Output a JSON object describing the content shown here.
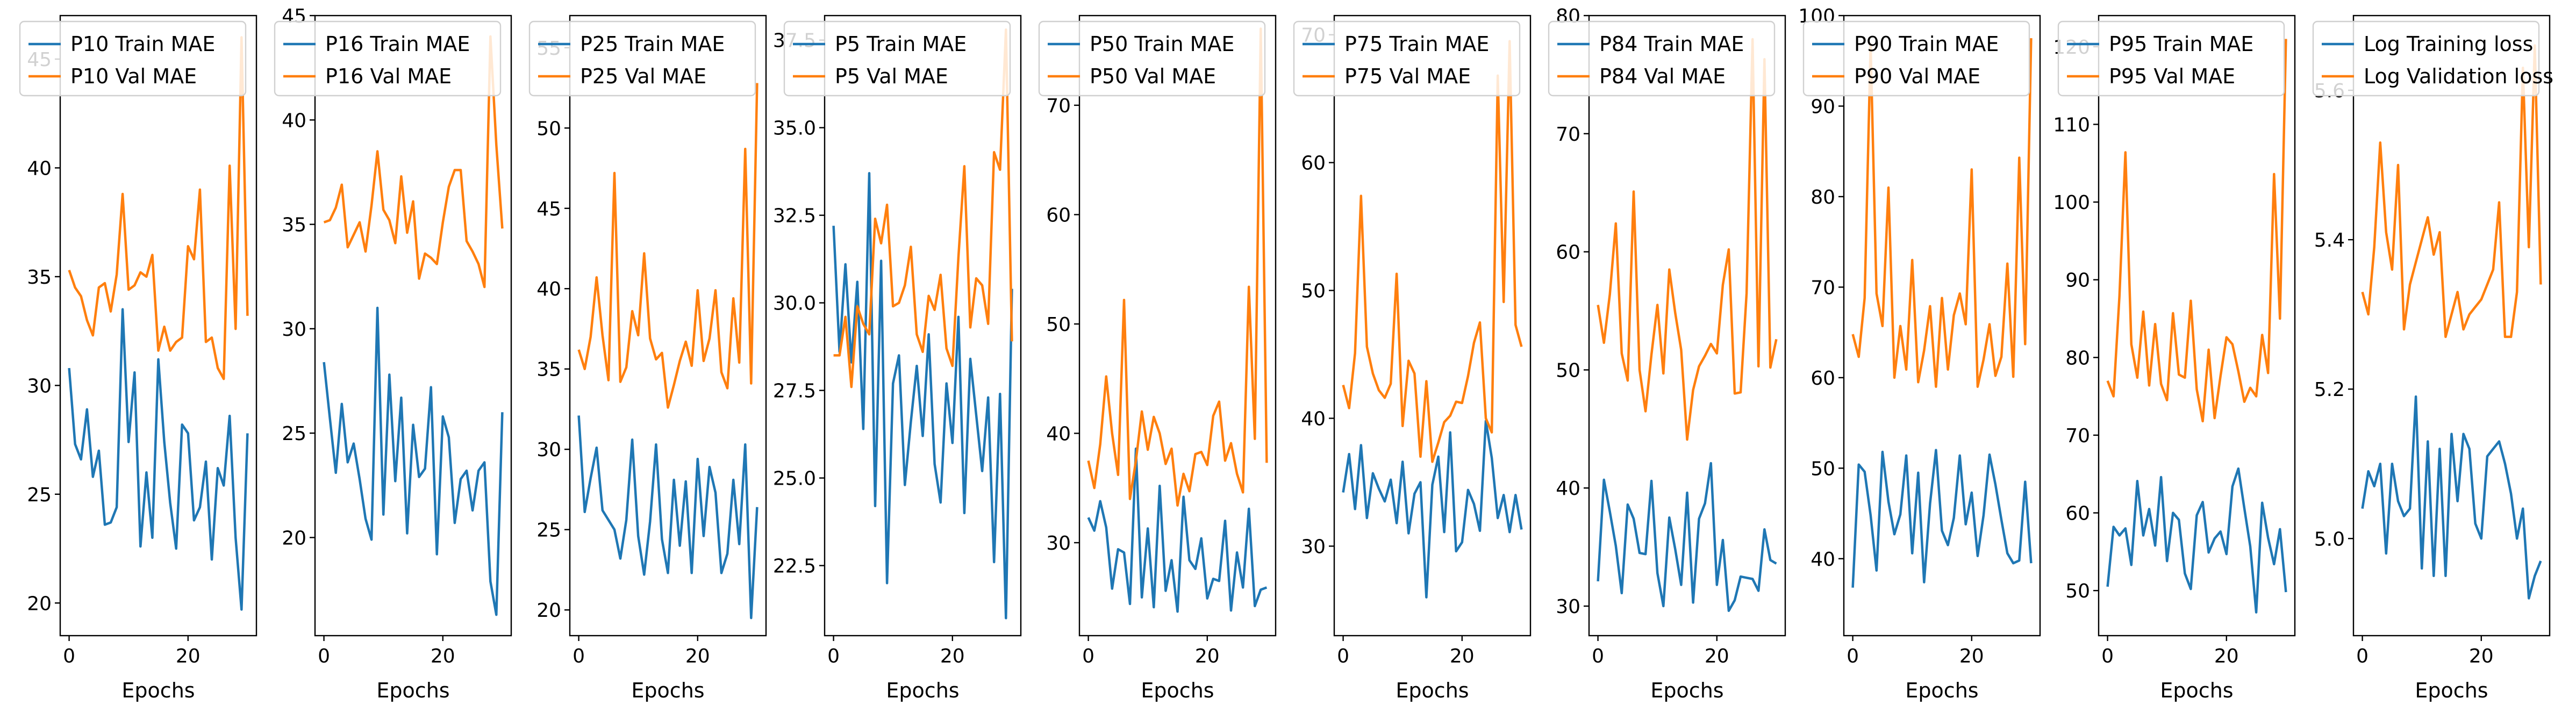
{
  "chart_data": [
    {
      "type": "line",
      "xlabel": "Epochs",
      "xlim": [
        -1.5,
        31.5
      ],
      "ylim": [
        18.5,
        47
      ],
      "yticks": [
        20,
        25,
        30,
        35,
        40,
        45
      ],
      "xticks": [
        0,
        20
      ],
      "legend_position": "top-left",
      "series": [
        {
          "name": "P10 Train MAE",
          "color": "#1f77b4",
          "y": [
            30.8,
            27.3,
            26.6,
            28.9,
            25.8,
            27.0,
            23.6,
            23.7,
            24.4,
            33.5,
            27.4,
            30.6,
            22.6,
            26.0,
            23.0,
            31.2,
            27.4,
            24.6,
            22.5,
            28.2,
            27.8,
            23.8,
            24.4,
            26.5,
            22.0,
            26.2,
            25.4,
            28.6,
            23.0,
            19.7,
            27.8
          ]
        },
        {
          "name": "P10 Val MAE",
          "color": "#ff7f0e",
          "y": [
            35.3,
            34.5,
            34.1,
            33.0,
            32.3,
            34.5,
            34.7,
            33.4,
            35.1,
            38.8,
            34.4,
            34.6,
            35.2,
            35.0,
            36.0,
            31.6,
            32.7,
            31.6,
            32.0,
            32.2,
            36.4,
            35.8,
            39.0,
            32.0,
            32.2,
            30.8,
            30.3,
            40.1,
            32.6,
            46.0,
            33.2
          ]
        }
      ]
    },
    {
      "type": "line",
      "xlabel": "Epochs",
      "xlim": [
        -1.5,
        31.5
      ],
      "ylim": [
        15.3,
        45
      ],
      "yticks": [
        20,
        25,
        30,
        35,
        40,
        45
      ],
      "xticks": [
        0,
        20
      ],
      "legend_position": "top-left",
      "series": [
        {
          "name": "P16 Train MAE",
          "color": "#1f77b4",
          "y": [
            28.4,
            25.7,
            23.1,
            26.4,
            23.6,
            24.5,
            22.8,
            20.9,
            19.9,
            31.0,
            21.1,
            27.8,
            22.7,
            26.7,
            20.2,
            25.4,
            22.9,
            23.3,
            27.2,
            19.2,
            25.8,
            24.8,
            20.7,
            22.8,
            23.2,
            21.3,
            23.2,
            23.6,
            17.9,
            16.3,
            26.0
          ]
        },
        {
          "name": "P16 Val MAE",
          "color": "#ff7f0e",
          "y": [
            35.1,
            35.2,
            35.8,
            36.9,
            33.9,
            34.5,
            35.1,
            33.7,
            35.9,
            38.5,
            35.7,
            35.2,
            34.1,
            37.3,
            34.6,
            36.1,
            32.4,
            33.6,
            33.4,
            33.1,
            35.1,
            36.8,
            37.6,
            37.6,
            34.2,
            33.7,
            33.1,
            32.0,
            44.0,
            38.8,
            34.8
          ]
        }
      ]
    },
    {
      "type": "line",
      "xlabel": "Epochs",
      "xlim": [
        -1.5,
        31.5
      ],
      "ylim": [
        18.4,
        57
      ],
      "yticks": [
        20,
        25,
        30,
        35,
        40,
        45,
        50,
        55
      ],
      "xticks": [
        0,
        20
      ],
      "legend_position": "top-left",
      "series": [
        {
          "name": "P25 Train MAE",
          "color": "#1f77b4",
          "y": [
            32.1,
            26.1,
            28.2,
            30.1,
            26.2,
            25.6,
            25.0,
            23.2,
            25.6,
            30.6,
            24.6,
            22.2,
            25.5,
            30.3,
            24.4,
            22.3,
            28.1,
            24.0,
            28.0,
            22.3,
            29.4,
            24.6,
            28.9,
            27.3,
            22.3,
            23.5,
            28.1,
            24.1,
            30.3,
            19.5,
            26.4
          ]
        },
        {
          "name": "P25 Val MAE",
          "color": "#ff7f0e",
          "y": [
            36.2,
            35.0,
            37.0,
            40.7,
            37.1,
            34.3,
            47.2,
            34.2,
            35.1,
            38.6,
            37.1,
            42.2,
            36.9,
            35.6,
            36.0,
            32.6,
            34.0,
            35.5,
            36.7,
            35.2,
            39.9,
            35.5,
            36.9,
            39.9,
            34.8,
            33.8,
            39.4,
            35.4,
            48.7,
            34.1,
            52.8
          ]
        }
      ]
    },
    {
      "type": "line",
      "xlabel": "Epochs",
      "xlim": [
        -1.5,
        31.5
      ],
      "ylim": [
        20.5,
        38.2
      ],
      "yticks": [
        22.5,
        25.0,
        27.5,
        30.0,
        32.5,
        35.0,
        37.5
      ],
      "xticks": [
        0,
        20
      ],
      "legend_position": "top-left",
      "series": [
        {
          "name": "P5 Train MAE",
          "color": "#1f77b4",
          "y": [
            32.2,
            28.6,
            31.1,
            28.3,
            30.6,
            26.4,
            33.7,
            24.2,
            31.2,
            22.0,
            27.7,
            28.5,
            24.8,
            26.6,
            28.2,
            26.2,
            29.1,
            25.4,
            24.3,
            27.7,
            26.0,
            29.6,
            24.0,
            28.4,
            26.8,
            25.2,
            27.3,
            22.6,
            27.4,
            21.0,
            30.4
          ]
        },
        {
          "name": "P5 Val MAE",
          "color": "#ff7f0e",
          "y": [
            28.5,
            28.5,
            29.6,
            27.6,
            29.9,
            29.4,
            29.1,
            32.4,
            31.7,
            32.8,
            29.9,
            30.0,
            30.5,
            31.6,
            29.1,
            28.6,
            30.2,
            29.8,
            30.8,
            28.7,
            28.2,
            31.3,
            33.9,
            29.3,
            30.7,
            30.5,
            29.4,
            34.3,
            33.8,
            37.8,
            28.9
          ]
        }
      ]
    },
    {
      "type": "line",
      "xlabel": "Epochs",
      "xlim": [
        -1.5,
        31.5
      ],
      "ylim": [
        21.5,
        78.2
      ],
      "yticks": [
        30,
        40,
        50,
        60,
        70
      ],
      "xticks": [
        0,
        20
      ],
      "legend_position": "top-left",
      "series": [
        {
          "name": "P50 Train MAE",
          "color": "#1f77b4",
          "y": [
            32.3,
            31.1,
            33.8,
            31.4,
            25.8,
            29.4,
            29.1,
            24.4,
            38.6,
            25.0,
            31.3,
            24.1,
            35.2,
            25.6,
            28.4,
            23.7,
            34.2,
            28.4,
            27.6,
            30.4,
            24.9,
            26.7,
            26.5,
            32.0,
            23.8,
            29.1,
            25.9,
            33.1,
            24.2,
            25.7,
            25.9
          ]
        },
        {
          "name": "P50 Val MAE",
          "color": "#ff7f0e",
          "y": [
            37.5,
            35.0,
            39.0,
            45.2,
            40.0,
            36.2,
            52.2,
            34.0,
            37.5,
            42.0,
            38.5,
            41.5,
            40.0,
            37.2,
            38.6,
            33.4,
            36.3,
            34.7,
            38.1,
            38.3,
            37.1,
            41.6,
            42.9,
            37.5,
            39.1,
            36.3,
            34.6,
            53.4,
            39.5,
            77.0,
            37.3
          ]
        }
      ]
    },
    {
      "type": "line",
      "xlabel": "Epochs",
      "xlim": [
        -1.5,
        31.5
      ],
      "ylim": [
        23.0,
        71.5
      ],
      "yticks": [
        30,
        40,
        50,
        60,
        70
      ],
      "xticks": [
        0,
        20
      ],
      "legend_position": "top-left",
      "series": [
        {
          "name": "P75 Train MAE",
          "color": "#1f77b4",
          "y": [
            34.2,
            37.2,
            32.9,
            37.9,
            32.2,
            35.7,
            34.5,
            33.5,
            35.2,
            31.8,
            36.6,
            31.0,
            34.1,
            35.0,
            26.0,
            34.8,
            37.0,
            31.1,
            38.9,
            29.6,
            30.3,
            34.4,
            33.3,
            31.2,
            39.8,
            36.9,
            32.2,
            34.0,
            31.1,
            34.0,
            31.3
          ]
        },
        {
          "name": "P75 Val MAE",
          "color": "#ff7f0e",
          "y": [
            42.6,
            40.8,
            45.1,
            57.4,
            45.6,
            43.5,
            42.2,
            41.6,
            42.7,
            51.3,
            39.4,
            44.5,
            43.5,
            37.0,
            42.9,
            36.6,
            38.1,
            39.7,
            40.2,
            41.3,
            41.2,
            43.3,
            45.9,
            47.5,
            40.0,
            38.9,
            66.8,
            49.1,
            69.5,
            47.3,
            45.6
          ]
        }
      ]
    },
    {
      "type": "line",
      "xlabel": "Epochs",
      "xlim": [
        -1.5,
        31.5
      ],
      "ylim": [
        27.5,
        80
      ],
      "yticks": [
        30,
        40,
        50,
        60,
        70,
        80
      ],
      "xticks": [
        0,
        20
      ],
      "legend_position": "top-left",
      "series": [
        {
          "name": "P84 Train MAE",
          "color": "#1f77b4",
          "y": [
            32.1,
            40.7,
            38.0,
            35.1,
            31.1,
            38.6,
            37.4,
            34.5,
            34.4,
            40.6,
            32.8,
            30.0,
            37.5,
            34.8,
            31.8,
            39.6,
            30.3,
            37.4,
            38.7,
            42.1,
            31.8,
            35.6,
            29.6,
            30.5,
            32.5,
            32.4,
            32.3,
            31.3,
            36.5,
            33.9,
            33.6
          ]
        },
        {
          "name": "P84 Val MAE",
          "color": "#ff7f0e",
          "y": [
            55.5,
            52.3,
            56.4,
            62.4,
            51.4,
            49.1,
            65.1,
            50.0,
            46.5,
            51.3,
            55.5,
            49.7,
            58.5,
            54.8,
            51.7,
            44.1,
            48.3,
            50.3,
            51.2,
            52.2,
            51.4,
            57.2,
            60.2,
            48.0,
            48.1,
            56.5,
            78.0,
            50.3,
            76.3,
            50.2,
            52.6
          ]
        }
      ]
    },
    {
      "type": "line",
      "xlabel": "Epochs",
      "xlim": [
        -1.5,
        31.5
      ],
      "ylim": [
        31.5,
        100
      ],
      "yticks": [
        40,
        50,
        60,
        70,
        80,
        90,
        100
      ],
      "xticks": [
        0,
        20
      ],
      "legend_position": "top-left",
      "series": [
        {
          "name": "P90 Train MAE",
          "color": "#1f77b4",
          "y": [
            36.8,
            50.4,
            49.6,
            44.8,
            38.7,
            51.8,
            46.3,
            42.7,
            44.9,
            51.4,
            40.6,
            49.5,
            37.4,
            46.1,
            52.0,
            43.1,
            41.5,
            44.5,
            51.4,
            43.8,
            47.3,
            40.3,
            44.8,
            51.5,
            48.2,
            44.3,
            40.6,
            39.5,
            39.8,
            48.5,
            39.5
          ]
        },
        {
          "name": "P90 Val MAE",
          "color": "#ff7f0e",
          "y": [
            64.8,
            62.3,
            68.8,
            96.8,
            69.3,
            65.7,
            81.0,
            60.0,
            65.7,
            60.9,
            73.0,
            59.5,
            63.0,
            67.9,
            59.0,
            68.8,
            60.9,
            66.9,
            69.3,
            65.9,
            83.0,
            59.0,
            62.0,
            65.9,
            60.2,
            62.3,
            72.6,
            60.1,
            84.3,
            63.7,
            97.5
          ]
        }
      ]
    },
    {
      "type": "line",
      "xlabel": "Epochs",
      "xlim": [
        -1.5,
        31.5
      ],
      "ylim": [
        44.2,
        124
      ],
      "yticks": [
        50,
        60,
        70,
        80,
        90,
        100,
        110,
        120
      ],
      "xticks": [
        0,
        20
      ],
      "legend_position": "top-left",
      "series": [
        {
          "name": "P95 Train MAE",
          "color": "#1f77b4",
          "y": [
            50.5,
            58.2,
            57.1,
            58.0,
            53.3,
            64.1,
            57.1,
            60.5,
            55.8,
            64.6,
            53.8,
            60.0,
            59.1,
            52.2,
            50.2,
            59.7,
            61.4,
            54.9,
            56.7,
            57.6,
            54.7,
            63.4,
            65.7,
            60.6,
            55.7,
            47.2,
            61.3,
            56.8,
            53.4,
            57.9,
            49.8
          ]
        },
        {
          "name": "P95 Val MAE",
          "color": "#ff7f0e",
          "y": [
            77.0,
            75.0,
            87.9,
            106.4,
            81.7,
            77.4,
            85.9,
            76.4,
            84.3,
            76.6,
            74.5,
            85.7,
            77.8,
            77.4,
            87.3,
            75.9,
            71.8,
            81.0,
            72.2,
            77.6,
            82.6,
            81.7,
            78.2,
            74.3,
            76.1,
            75.0,
            82.9,
            78.0,
            103.6,
            85.0,
            121.0
          ]
        }
      ]
    },
    {
      "type": "line",
      "xlabel": "Epochs",
      "xlim": [
        -1.5,
        31.5
      ],
      "ylim": [
        4.87,
        5.7
      ],
      "yticks": [
        5.0,
        5.2,
        5.4,
        5.6
      ],
      "xticks": [
        0,
        20
      ],
      "legend_position": "top-left",
      "series": [
        {
          "name": "Log Training loss",
          "color": "#1f77b4",
          "y": [
            5.04,
            5.09,
            5.07,
            5.1,
            4.98,
            5.1,
            5.05,
            5.03,
            5.04,
            5.19,
            4.96,
            5.13,
            4.95,
            5.12,
            4.95,
            5.14,
            5.05,
            5.14,
            5.12,
            5.02,
            5.0,
            5.11,
            5.12,
            5.13,
            5.1,
            5.06,
            5.0,
            5.04,
            4.92,
            4.95,
            4.97
          ]
        },
        {
          "name": "Log Validation loss",
          "color": "#ff7f0e",
          "y": [
            5.33,
            5.3,
            5.39,
            5.53,
            5.41,
            5.36,
            5.5,
            5.28,
            5.34,
            5.37,
            5.4,
            5.43,
            5.38,
            5.41,
            5.27,
            5.3,
            5.33,
            5.28,
            5.3,
            5.31,
            5.32,
            5.34,
            5.36,
            5.45,
            5.27,
            5.27,
            5.33,
            5.63,
            5.39,
            5.66,
            5.34
          ]
        }
      ]
    }
  ]
}
